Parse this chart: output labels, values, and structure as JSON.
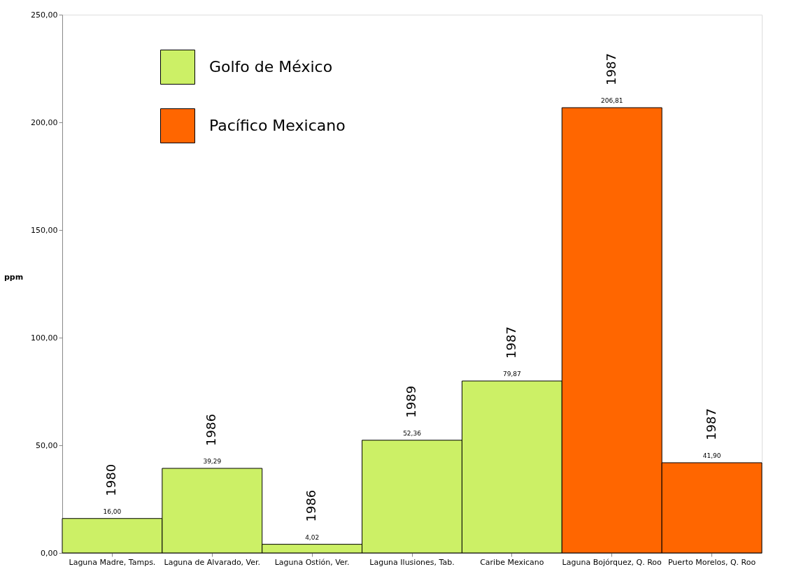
{
  "chart_data": {
    "type": "bar",
    "ylabel": "ppm",
    "categories": [
      "Laguna Madre, Tamps.",
      "Laguna de Alvarado, Ver.",
      "Laguna Ostión, Ver.",
      "Laguna Ilusiones, Tab.",
      "Caribe Mexicano",
      "Laguna Bojórquez, Q. Roo",
      "Puerto Morelos, Q. Roo"
    ],
    "series": [
      {
        "name": "Golfo de México",
        "color": "#ccf066",
        "values": [
          16.0,
          39.29,
          4.02,
          52.36,
          79.87,
          null,
          null
        ],
        "value_labels": [
          "16,00",
          "39,29",
          "4,02",
          "52,36",
          "79,87",
          null,
          null
        ]
      },
      {
        "name": "Pacífico Mexicano",
        "color": "#ff6600",
        "values": [
          null,
          null,
          null,
          null,
          null,
          206.81,
          41.9
        ],
        "value_labels": [
          null,
          null,
          null,
          null,
          null,
          "206,81",
          "41,90"
        ]
      }
    ],
    "ylim": [
      0,
      250
    ],
    "yticks": [
      {
        "value": 0,
        "label": "0,00"
      },
      {
        "value": 50,
        "label": "50,00"
      },
      {
        "value": 100,
        "label": "100,00"
      },
      {
        "value": 150,
        "label": "150,00"
      },
      {
        "value": 200,
        "label": "200,00"
      },
      {
        "value": 250,
        "label": "250,00"
      }
    ],
    "grid": false,
    "legend": "top left",
    "annotations": [
      {
        "text": "1980",
        "x": "Laguna Madre, Tamps.",
        "y": 16.0
      },
      {
        "text": "1986",
        "x": "Laguna de Alvarado, Ver.",
        "y": 39.29
      },
      {
        "text": "1986",
        "x": "Laguna Ostión, Ver.",
        "y": 4.02
      },
      {
        "text": "1989",
        "x": "Laguna Ilusiones, Tab.",
        "y": 52.36
      },
      {
        "text": "1987",
        "x": "Caribe Mexicano",
        "y": 79.87
      },
      {
        "text": "1987",
        "x": "Laguna Bojórquez, Q. Roo",
        "y": 206.81
      },
      {
        "text": "1987",
        "x": "Puerto Morelos, Q. Roo",
        "y": 41.9
      }
    ]
  }
}
